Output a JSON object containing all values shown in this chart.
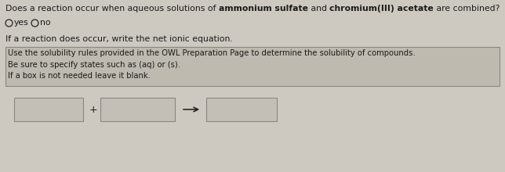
{
  "title_normal1": "Does a reaction occur when aqueous solutions of ",
  "title_bold1": "ammonium sulfate",
  "title_normal2": " and ",
  "title_bold2": "chromium(III) acetate",
  "title_normal3": " are combined?",
  "reaction_line": "If a reaction does occur, write the net ionic equation.",
  "hint_lines": [
    "Use the solubility rules provided in the OWL Preparation Page to determine the solubility of compounds.",
    "Be sure to specify states such as (aq) or (s).",
    "If a box is not needed leave it blank."
  ],
  "fig_bg": "#cdc9c0",
  "box_bg": "#c4bfb6",
  "hint_box_bg": "#bfbab0",
  "text_color": "#1a1a1a",
  "border_color": "#888880"
}
